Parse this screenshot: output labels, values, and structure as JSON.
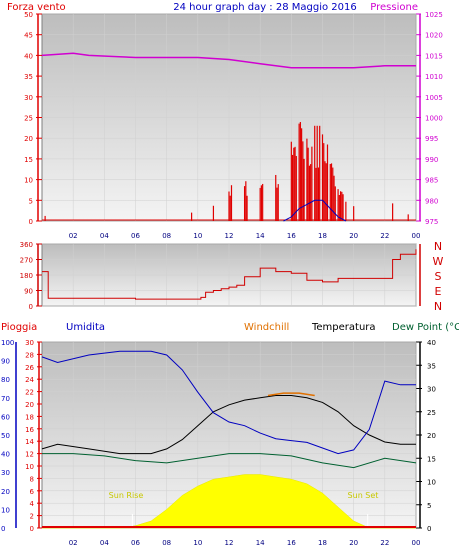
{
  "header": {
    "left_label": "Forza vento",
    "title": "24 hour graph day : 28 Maggio 2016",
    "right_label": "Pressione"
  },
  "colors": {
    "wind_axis": "#e00000",
    "pressure": "#d000d0",
    "direction": "#d00000",
    "rain_axis": "#e00000",
    "humidity": "#0000c0",
    "windchill": "#e07000",
    "temperature": "#000000",
    "dewpoint": "#006030",
    "sun": "#ffff00",
    "plot_bg_top": "#bdbdbd",
    "plot_bg_bottom": "#f4f4f4"
  },
  "middle": {
    "compass": [
      "N",
      "W",
      "S",
      "E",
      "N"
    ]
  },
  "bottom_header": {
    "rain": "Pioggia",
    "humidity": "Umidita",
    "windchill": "Windchill",
    "temperature": "Temperatura",
    "dewpoint": "Dew Point (°C"
  },
  "annotations": {
    "sunrise": "Sun Rise",
    "sunset": "Sun Set"
  },
  "chart_data": [
    {
      "type": "line",
      "name": "wind-pressure",
      "x_ticks": [
        "02",
        "04",
        "06",
        "08",
        "10",
        "12",
        "14",
        "16",
        "18",
        "20",
        "22",
        "00"
      ],
      "left_axis": {
        "ylim": [
          0,
          50
        ],
        "ticks": [
          0,
          5,
          10,
          15,
          20,
          25,
          30,
          35,
          40,
          45,
          50
        ]
      },
      "right_axis": {
        "ylim": [
          975,
          1025
        ],
        "ticks": [
          975,
          980,
          985,
          990,
          995,
          1000,
          1005,
          1010,
          1015,
          1020,
          1025
        ]
      },
      "pressure": {
        "x": [
          0,
          2,
          3,
          6,
          8,
          10,
          12,
          14,
          16,
          17,
          18,
          20,
          22,
          24
        ],
        "y": [
          1015,
          1015.5,
          1015,
          1014.5,
          1014.5,
          1014.5,
          1014,
          1013,
          1012,
          1012,
          1012,
          1012,
          1012.5,
          1012.5
        ]
      },
      "wind_gust_max": {
        "x": [
          0.2,
          9.6,
          11,
          12,
          13,
          14,
          15,
          16,
          16.5,
          17,
          17.5,
          18,
          18.5,
          19,
          19.5,
          20,
          22.5,
          23.5
        ],
        "y": [
          2,
          3,
          5,
          9,
          10,
          9,
          12,
          20,
          24,
          20,
          23,
          21,
          14,
          8,
          5,
          4,
          5,
          2
        ]
      },
      "wind_avg": {
        "x": [
          15.5,
          16,
          16.5,
          17,
          17.5,
          18,
          18.5,
          19,
          19.5
        ],
        "y": [
          0,
          1,
          3,
          4,
          5,
          5,
          3,
          1,
          0
        ]
      }
    },
    {
      "type": "line",
      "name": "wind-direction",
      "ylim": [
        0,
        360
      ],
      "yticks": [
        0,
        90,
        180,
        270,
        360
      ],
      "x": [
        0,
        0.4,
        3,
        6,
        8,
        9.5,
        10.2,
        10.5,
        11,
        11.5,
        12,
        12.5,
        13,
        14,
        15,
        16,
        17,
        18,
        19,
        21,
        22,
        22.5,
        23,
        24
      ],
      "y": [
        200,
        45,
        45,
        40,
        40,
        40,
        50,
        80,
        90,
        100,
        110,
        120,
        170,
        220,
        200,
        190,
        150,
        140,
        160,
        160,
        160,
        270,
        300,
        330
      ]
    },
    {
      "type": "line",
      "name": "thp",
      "left_rain_axis": {
        "ylim": [
          0,
          30
        ],
        "ticks": [
          0,
          2,
          4,
          6,
          8,
          10,
          12,
          14,
          16,
          18,
          20,
          22,
          24,
          26,
          28,
          30
        ]
      },
      "left_humidity_axis": {
        "ylim": [
          0,
          100
        ],
        "ticks": [
          0,
          10,
          20,
          30,
          40,
          50,
          60,
          70,
          80,
          90,
          100
        ]
      },
      "right_axis": {
        "ylim": [
          0,
          40
        ],
        "ticks": [
          0,
          5,
          10,
          15,
          20,
          25,
          30,
          35,
          40
        ]
      },
      "humidity": {
        "x": [
          0,
          1,
          3,
          5,
          7,
          8,
          9,
          10,
          11,
          12,
          13,
          14,
          15,
          16,
          17,
          18,
          19,
          20,
          21,
          22,
          23,
          24
        ],
        "y": [
          92,
          89,
          93,
          95,
          95,
          93,
          85,
          73,
          62,
          57,
          55,
          51,
          48,
          47,
          46,
          43,
          40,
          42,
          53,
          79,
          77,
          77
        ]
      },
      "temperature": {
        "x": [
          0,
          1,
          3,
          5,
          7,
          8,
          9,
          10,
          11,
          12,
          13,
          14,
          15,
          16,
          17,
          18,
          19,
          20,
          21,
          22,
          23,
          24
        ],
        "y": [
          17,
          18,
          17,
          16,
          16,
          17,
          19,
          22,
          25,
          26.5,
          27.5,
          28,
          28.5,
          28.5,
          28,
          27,
          25,
          22,
          20,
          18.5,
          18,
          18
        ]
      },
      "windchill": {
        "x": [
          14.5,
          15.5,
          16.5,
          17.5
        ],
        "y": [
          28.5,
          29,
          29,
          28.5
        ]
      },
      "dewpoint": {
        "x": [
          0,
          2,
          4,
          6,
          8,
          10,
          12,
          14,
          16,
          18,
          20,
          22,
          24
        ],
        "y": [
          16,
          16,
          15.5,
          14.5,
          14,
          15,
          16,
          16,
          15.5,
          14,
          13,
          15,
          14
        ]
      },
      "solar": {
        "x": [
          0,
          5,
          6,
          7,
          8,
          9,
          10,
          11,
          12,
          13,
          14,
          15,
          16,
          17,
          18,
          19,
          20,
          21,
          24
        ],
        "y": [
          0,
          0,
          0.5,
          1.5,
          4,
          7,
          9,
          10.5,
          11,
          11.5,
          11.5,
          11,
          10.5,
          9.5,
          7.5,
          4.5,
          1.5,
          0,
          0
        ]
      }
    }
  ]
}
